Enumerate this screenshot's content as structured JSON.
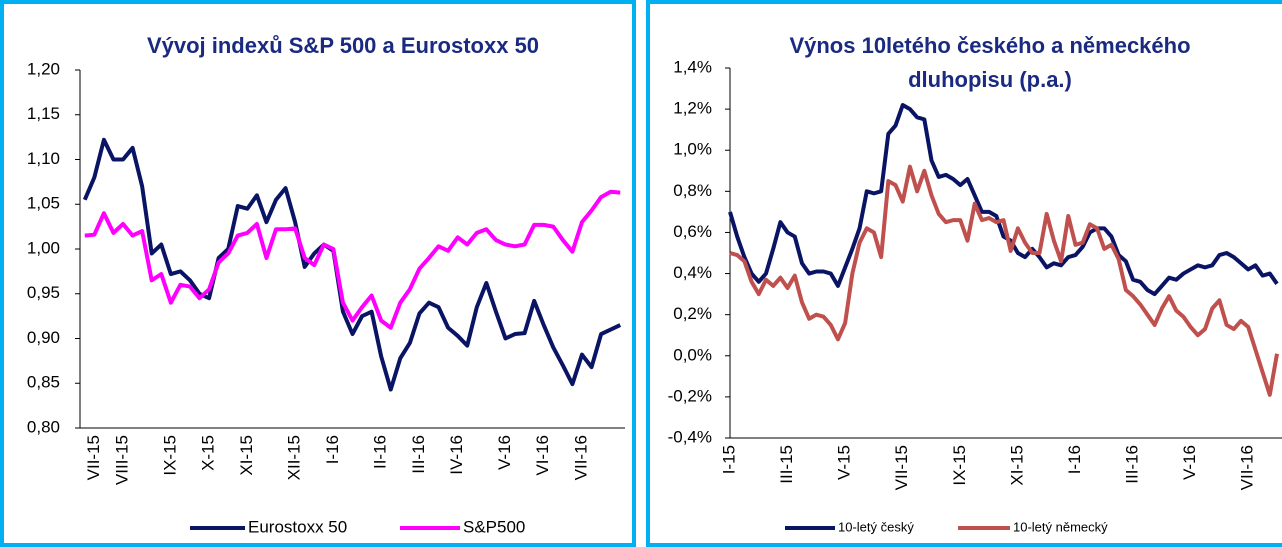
{
  "chart_data": [
    {
      "type": "line",
      "title": [
        "Vývoj indexů S&P 500 a Eurostoxx 50"
      ],
      "categories": [
        null,
        "VII-15",
        null,
        null,
        "VIII-15",
        null,
        null,
        null,
        null,
        "IX-15",
        null,
        null,
        null,
        "X-15",
        null,
        null,
        null,
        "XI-15",
        null,
        null,
        null,
        null,
        "XII-15",
        null,
        null,
        null,
        "I-16",
        null,
        null,
        null,
        null,
        "II-16",
        null,
        null,
        null,
        "III-16",
        null,
        null,
        null,
        "IV-16",
        null,
        null,
        null,
        null,
        "V-16",
        null,
        null,
        null,
        "VI-16",
        null,
        null,
        null,
        "VII-16",
        null,
        null,
        null,
        null
      ],
      "series": [
        {
          "name": "Eurostoxx 50",
          "color": "#0a1464",
          "values": [
            1.055,
            1.08,
            1.122,
            1.1,
            1.1,
            1.113,
            1.07,
            0.995,
            1.005,
            0.972,
            0.975,
            0.965,
            0.95,
            0.945,
            0.99,
            1.0,
            1.048,
            1.045,
            1.06,
            1.03,
            1.055,
            1.068,
            1.03,
            0.98,
            0.995,
            1.005,
            0.998,
            0.93,
            0.905,
            0.925,
            0.93,
            0.88,
            0.843,
            0.878,
            0.895,
            0.928,
            0.94,
            0.935,
            0.912,
            0.903,
            0.892,
            0.935,
            0.962,
            0.93,
            0.9,
            0.905,
            0.906,
            0.942,
            0.915,
            0.89,
            0.87,
            0.849,
            0.882,
            0.868,
            0.905,
            0.91,
            0.915
          ]
        },
        {
          "name": "S&P500",
          "color": "#ff00ff",
          "values": [
            1.015,
            1.016,
            1.04,
            1.018,
            1.028,
            1.015,
            1.02,
            0.965,
            0.972,
            0.94,
            0.96,
            0.958,
            0.945,
            0.955,
            0.985,
            0.995,
            1.015,
            1.018,
            1.028,
            0.99,
            1.022,
            1.022,
            1.023,
            0.99,
            0.982,
            1.005,
            1.0,
            0.94,
            0.92,
            0.935,
            0.948,
            0.92,
            0.912,
            0.94,
            0.955,
            0.978,
            0.99,
            1.003,
            0.998,
            1.013,
            1.005,
            1.018,
            1.022,
            1.01,
            1.005,
            1.003,
            1.005,
            1.027,
            1.027,
            1.025,
            1.01,
            0.997,
            1.03,
            1.043,
            1.058,
            1.064,
            1.063
          ]
        }
      ],
      "ylim": [
        0.8,
        1.2
      ],
      "yticks": [
        {
          "value": 0.8,
          "label": "0,80"
        },
        {
          "value": 0.85,
          "label": "0,85"
        },
        {
          "value": 0.9,
          "label": "0,90"
        },
        {
          "value": 0.95,
          "label": "0,95"
        },
        {
          "value": 1.0,
          "label": "1,00"
        },
        {
          "value": 1.05,
          "label": "1,05"
        },
        {
          "value": 1.1,
          "label": "1,10"
        },
        {
          "value": 1.15,
          "label": "1,15"
        },
        {
          "value": 1.2,
          "label": "1,20"
        }
      ],
      "grid": false,
      "legend": "bottom"
    },
    {
      "type": "line",
      "title": [
        "Výnos 10letého českého a německého",
        "dluhopisu (p.a.)"
      ],
      "categories": [
        "I-15",
        null,
        null,
        null,
        null,
        null,
        null,
        null,
        "III-15",
        null,
        null,
        null,
        null,
        null,
        null,
        null,
        "V-15",
        null,
        null,
        null,
        null,
        null,
        null,
        null,
        "VII-15",
        null,
        null,
        null,
        null,
        null,
        null,
        null,
        "IX-15",
        null,
        null,
        null,
        null,
        null,
        null,
        null,
        "XI-15",
        null,
        null,
        null,
        null,
        null,
        null,
        null,
        "I-16",
        null,
        null,
        null,
        null,
        null,
        null,
        null,
        "III-16",
        null,
        null,
        null,
        null,
        null,
        null,
        null,
        "V-16",
        null,
        null,
        null,
        null,
        null,
        null,
        null,
        "VII-16",
        null,
        null,
        null,
        null
      ],
      "series": [
        {
          "name": "10-letý český",
          "color": "#0a1464",
          "values": [
            0.7,
            0.58,
            0.48,
            0.4,
            0.36,
            0.4,
            0.52,
            0.65,
            0.6,
            0.58,
            0.45,
            0.4,
            0.41,
            0.41,
            0.4,
            0.34,
            0.43,
            0.52,
            0.62,
            0.8,
            0.79,
            0.8,
            1.08,
            1.12,
            1.22,
            1.2,
            1.16,
            1.15,
            0.95,
            0.87,
            0.88,
            0.86,
            0.83,
            0.86,
            0.78,
            0.7,
            0.7,
            0.68,
            0.58,
            0.56,
            0.5,
            0.48,
            0.52,
            0.48,
            0.43,
            0.45,
            0.44,
            0.48,
            0.49,
            0.53,
            0.6,
            0.62,
            0.62,
            0.58,
            0.49,
            0.46,
            0.37,
            0.36,
            0.32,
            0.3,
            0.34,
            0.38,
            0.37,
            0.4,
            0.42,
            0.44,
            0.43,
            0.44,
            0.49,
            0.5,
            0.48,
            0.45,
            0.42,
            0.44,
            0.39,
            0.4,
            0.35
          ]
        },
        {
          "name": "10-letý německý",
          "color": "#c0504d",
          "values": [
            0.5,
            0.49,
            0.46,
            0.36,
            0.3,
            0.37,
            0.34,
            0.38,
            0.33,
            0.39,
            0.26,
            0.18,
            0.2,
            0.19,
            0.15,
            0.08,
            0.16,
            0.4,
            0.55,
            0.62,
            0.6,
            0.48,
            0.85,
            0.83,
            0.75,
            0.92,
            0.8,
            0.9,
            0.78,
            0.69,
            0.65,
            0.66,
            0.66,
            0.56,
            0.74,
            0.66,
            0.67,
            0.65,
            0.66,
            0.51,
            0.62,
            0.55,
            0.5,
            0.5,
            0.69,
            0.56,
            0.46,
            0.68,
            0.54,
            0.55,
            0.64,
            0.62,
            0.52,
            0.54,
            0.47,
            0.32,
            0.29,
            0.25,
            0.2,
            0.15,
            0.23,
            0.29,
            0.22,
            0.19,
            0.14,
            0.1,
            0.13,
            0.23,
            0.27,
            0.15,
            0.13,
            0.17,
            0.14,
            0.03,
            -0.08,
            -0.19,
            0.01
          ]
        }
      ],
      "ylim": [
        -0.4,
        1.4
      ],
      "yticks": [
        {
          "value": -0.4,
          "label": "-0,4%"
        },
        {
          "value": -0.2,
          "label": "-0,2%"
        },
        {
          "value": 0,
          "label": "0,0%"
        },
        {
          "value": 0.2,
          "label": "0,2%"
        },
        {
          "value": 0.4,
          "label": "0,4%"
        },
        {
          "value": 0.6,
          "label": "0,6%"
        },
        {
          "value": 0.8,
          "label": "0,8%"
        },
        {
          "value": 1.0,
          "label": "1,0%"
        },
        {
          "value": 1.2,
          "label": "1,2%"
        },
        {
          "value": 1.4,
          "label": "1,4%"
        }
      ],
      "grid": false,
      "legend": "bottom"
    }
  ]
}
